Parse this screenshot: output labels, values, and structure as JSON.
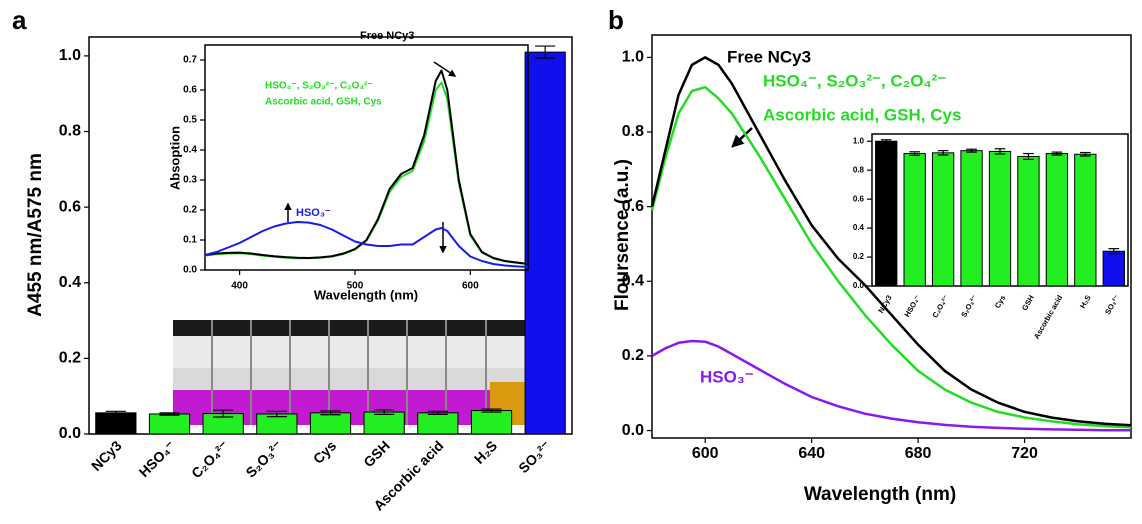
{
  "chart_data": [
    {
      "type": "bar",
      "panel": "a",
      "ylabel": "A455 nm/A575 nm",
      "categories": [
        "NCy3",
        "HSO₄⁻",
        "C₂O₄²⁻",
        "S₂O₃²⁻",
        "Cys",
        "GSH",
        "Ascorbic acid",
        "H₂S",
        "SO₃²⁻"
      ],
      "values": [
        0.056,
        0.053,
        0.054,
        0.053,
        0.056,
        0.058,
        0.056,
        0.062,
        1.01
      ],
      "errors": [
        0.004,
        0.003,
        0.009,
        0.007,
        0.005,
        0.006,
        0.004,
        0.004,
        0.016
      ],
      "colors": [
        "#000000",
        "#22ee22",
        "#22ee22",
        "#22ee22",
        "#22ee22",
        "#22ee22",
        "#22ee22",
        "#22ee22",
        "#1010ee"
      ],
      "ylim": [
        0,
        1.05
      ],
      "yticks": [
        {
          "value": 0,
          "label": "0.0"
        },
        0.2,
        0.4,
        0.6,
        0.8,
        {
          "value": 1,
          "label": "1.0"
        }
      ]
    },
    {
      "type": "line",
      "xlabel": "Wavelength (nm)",
      "ylabel": "Absoption",
      "x": [
        370,
        380,
        390,
        400,
        410,
        420,
        430,
        440,
        450,
        460,
        470,
        480,
        490,
        500,
        510,
        520,
        530,
        540,
        550,
        560,
        570,
        575,
        580,
        590,
        600,
        610,
        620,
        630,
        640,
        650
      ],
      "series": [
        {
          "color": "#22dd22",
          "values": [
            0.048,
            0.053,
            0.055,
            0.056,
            0.053,
            0.048,
            0.044,
            0.041,
            0.039,
            0.039,
            0.041,
            0.045,
            0.053,
            0.068,
            0.098,
            0.165,
            0.26,
            0.31,
            0.33,
            0.43,
            0.6,
            0.625,
            0.57,
            0.29,
            0.115,
            0.058,
            0.039,
            0.029,
            0.024,
            0.02
          ]
        },
        {
          "color": "#000000",
          "values": [
            0.05,
            0.055,
            0.057,
            0.058,
            0.055,
            0.05,
            0.046,
            0.043,
            0.041,
            0.04,
            0.042,
            0.046,
            0.055,
            0.07,
            0.1,
            0.17,
            0.27,
            0.32,
            0.34,
            0.45,
            0.63,
            0.665,
            0.6,
            0.3,
            0.12,
            0.06,
            0.04,
            0.03,
            0.025,
            0.02
          ]
        },
        {
          "color": "#1a1aee",
          "values": [
            0.05,
            0.06,
            0.075,
            0.09,
            0.11,
            0.13,
            0.145,
            0.155,
            0.16,
            0.158,
            0.15,
            0.135,
            0.115,
            0.095,
            0.085,
            0.08,
            0.08,
            0.085,
            0.085,
            0.11,
            0.135,
            0.14,
            0.13,
            0.08,
            0.045,
            0.03,
            0.02,
            0.015,
            0.012,
            0.01
          ]
        }
      ],
      "xlim": [
        370,
        650
      ],
      "xticks": [
        400,
        500,
        600
      ],
      "ylim": [
        0,
        0.75
      ],
      "yticks": [
        {
          "value": 0,
          "label": "0.0"
        },
        0.1,
        0.2,
        0.3,
        0.4,
        0.5,
        0.6,
        0.7
      ],
      "annotations": [
        {
          "text": "Free NCy3",
          "color": "#000000"
        },
        {
          "text": "HSO₄⁻, S₂O₃²⁻, C₂O₄²⁻",
          "color": "#22dd22"
        },
        {
          "text": "Ascorbic acid, GSH, Cys",
          "color": "#22dd22"
        },
        {
          "text": "HSO₃⁻",
          "color": "#1a1aee"
        }
      ]
    },
    {
      "type": "line",
      "panel": "b",
      "xlabel": "Wavelength (nm)",
      "ylabel": "Floursence (a.u.)",
      "x": [
        580,
        585,
        590,
        595,
        600,
        605,
        610,
        620,
        630,
        640,
        650,
        660,
        670,
        680,
        690,
        700,
        710,
        720,
        730,
        740,
        750,
        760
      ],
      "series": [
        {
          "color": "#22dd22",
          "values": [
            0.59,
            0.73,
            0.85,
            0.91,
            0.92,
            0.89,
            0.85,
            0.74,
            0.62,
            0.5,
            0.4,
            0.31,
            0.23,
            0.16,
            0.11,
            0.075,
            0.05,
            0.035,
            0.025,
            0.017,
            0.012,
            0.009
          ]
        },
        {
          "color": "#000000",
          "values": [
            0.6,
            0.75,
            0.9,
            0.98,
            1.0,
            0.98,
            0.93,
            0.8,
            0.67,
            0.55,
            0.46,
            0.39,
            0.31,
            0.23,
            0.16,
            0.11,
            0.075,
            0.05,
            0.035,
            0.025,
            0.018,
            0.014
          ]
        },
        {
          "color": "#8a1aee",
          "values": [
            0.2,
            0.22,
            0.235,
            0.24,
            0.238,
            0.225,
            0.205,
            0.165,
            0.125,
            0.09,
            0.065,
            0.045,
            0.032,
            0.022,
            0.015,
            0.01,
            0.007,
            0.005,
            0.003,
            0.002,
            0.001,
            0.001
          ]
        }
      ],
      "xlim": [
        580,
        760
      ],
      "xticks": [
        600,
        640,
        680,
        720
      ],
      "ylim": [
        -0.02,
        1.06
      ],
      "yticks": [
        {
          "value": 0,
          "label": "0.0"
        },
        0.2,
        0.4,
        0.6,
        0.8,
        {
          "value": 1,
          "label": "1.0"
        }
      ],
      "annotations": [
        {
          "text": "Free NCy3",
          "color": "#000000"
        },
        {
          "text": "HSO₄⁻, S₂O₃²⁻, C₂O₄²⁻",
          "color": "#22dd22"
        },
        {
          "text": "Ascorbic acid, GSH, Cys",
          "color": "#22dd22"
        },
        {
          "text": "HSO₃⁻",
          "color": "#8a1aee"
        }
      ]
    },
    {
      "type": "bar",
      "categories": [
        "NCy3",
        "HSO₄⁻",
        "C₂O₄²⁻",
        "S₂O₃²⁻",
        "Cys",
        "GSH",
        "Ascorbic acid",
        "H₂S",
        "SO₃²⁻"
      ],
      "values": [
        1.0,
        0.915,
        0.92,
        0.935,
        0.93,
        0.895,
        0.915,
        0.91,
        0.24
      ],
      "errors": [
        0.01,
        0.012,
        0.015,
        0.01,
        0.018,
        0.02,
        0.01,
        0.012,
        0.018
      ],
      "colors": [
        "#000000",
        "#22ee22",
        "#22ee22",
        "#22ee22",
        "#22ee22",
        "#22ee22",
        "#22ee22",
        "#22ee22",
        "#1010ee"
      ],
      "ylim": [
        0,
        1.05
      ],
      "yticks": [
        {
          "value": 0,
          "label": "0.0"
        },
        0.2,
        0.4,
        0.6,
        0.8,
        {
          "value": 1,
          "label": "1.0"
        }
      ]
    }
  ]
}
